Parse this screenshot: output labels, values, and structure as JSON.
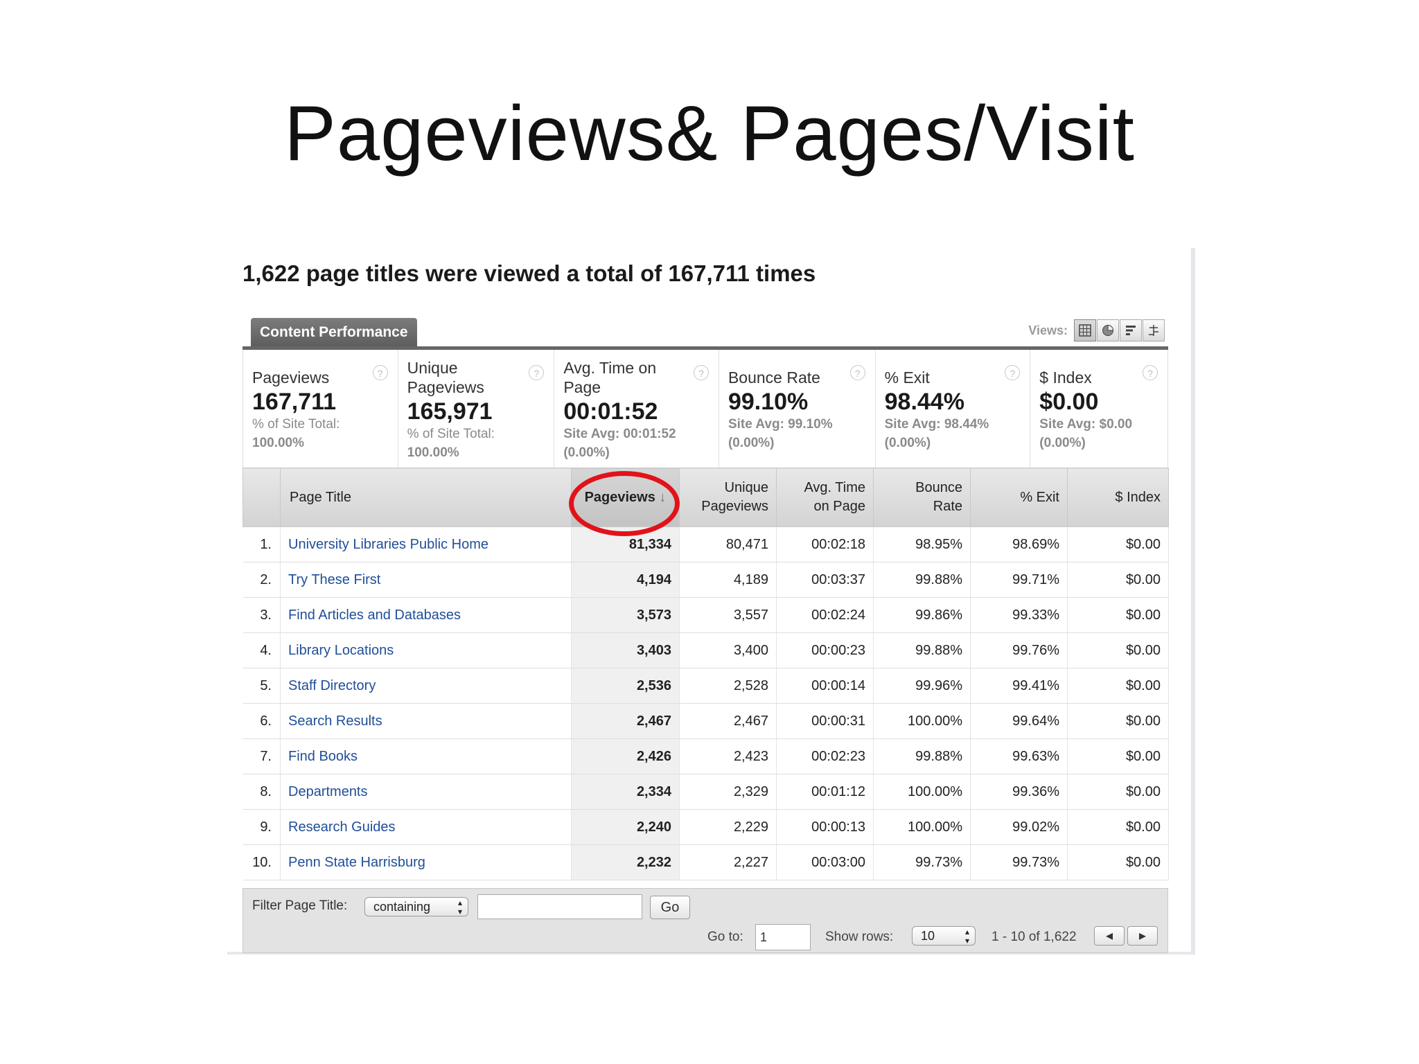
{
  "slide": {
    "title": "Pageviews& Pages/Visit"
  },
  "report": {
    "headline": "1,622 page titles were viewed a total of 167,711 times",
    "tab_label": "Content Performance",
    "views_label": "Views:",
    "view_icons": [
      "table-view-icon",
      "pie-view-icon",
      "bar-view-icon",
      "pivot-view-icon"
    ]
  },
  "metrics": [
    {
      "label_lines": [
        "Pageviews"
      ],
      "value": "167,711",
      "sub_lines": [
        "% of Site Total:",
        "100.00%"
      ]
    },
    {
      "label_lines": [
        "Unique",
        "Pageviews"
      ],
      "value": "165,971",
      "sub_lines": [
        "% of Site Total:",
        "100.00%"
      ]
    },
    {
      "label_lines": [
        "Avg. Time on",
        "Page"
      ],
      "value": "00:01:52",
      "sub_lines": [
        "Site Avg: 00:01:52",
        "(0.00%)"
      ]
    },
    {
      "label_lines": [
        "Bounce Rate"
      ],
      "value": "99.10%",
      "sub_lines": [
        "Site Avg: 99.10%",
        "(0.00%)"
      ]
    },
    {
      "label_lines": [
        "% Exit"
      ],
      "value": "98.44%",
      "sub_lines": [
        "Site Avg: 98.44%",
        "(0.00%)"
      ]
    },
    {
      "label_lines": [
        "$ Index"
      ],
      "value": "$0.00",
      "sub_lines": [
        "Site Avg: $0.00",
        "(0.00%)"
      ]
    }
  ],
  "help_glyph": "?",
  "table": {
    "columns": [
      "",
      "Page Title",
      "Pageviews",
      "Unique\nPageviews",
      "Avg. Time\non Page",
      "Bounce\nRate",
      "% Exit",
      "$ Index"
    ],
    "sort_arrow": "↓",
    "rows": [
      [
        "1.",
        "University Libraries Public Home",
        "81,334",
        "80,471",
        "00:02:18",
        "98.95%",
        "98.69%",
        "$0.00"
      ],
      [
        "2.",
        "Try These First",
        "4,194",
        "4,189",
        "00:03:37",
        "99.88%",
        "99.71%",
        "$0.00"
      ],
      [
        "3.",
        "Find Articles and Databases",
        "3,573",
        "3,557",
        "00:02:24",
        "99.86%",
        "99.33%",
        "$0.00"
      ],
      [
        "4.",
        "Library Locations",
        "3,403",
        "3,400",
        "00:00:23",
        "99.88%",
        "99.76%",
        "$0.00"
      ],
      [
        "5.",
        "Staff Directory",
        "2,536",
        "2,528",
        "00:00:14",
        "99.96%",
        "99.41%",
        "$0.00"
      ],
      [
        "6.",
        "Search Results",
        "2,467",
        "2,467",
        "00:00:31",
        "100.00%",
        "99.64%",
        "$0.00"
      ],
      [
        "7.",
        "Find Books",
        "2,426",
        "2,423",
        "00:02:23",
        "99.88%",
        "99.63%",
        "$0.00"
      ],
      [
        "8.",
        "Departments",
        "2,334",
        "2,329",
        "00:01:12",
        "100.00%",
        "99.36%",
        "$0.00"
      ],
      [
        "9.",
        "Research Guides",
        "2,240",
        "2,229",
        "00:00:13",
        "100.00%",
        "99.02%",
        "$0.00"
      ],
      [
        "10.",
        "Penn State Harrisburg",
        "2,232",
        "2,227",
        "00:03:00",
        "99.73%",
        "99.73%",
        "$0.00"
      ]
    ]
  },
  "footer": {
    "filter_label": "Filter Page Title:",
    "filter_mode": "containing",
    "filter_value": "",
    "go_label": "Go",
    "goto_label": "Go to:",
    "goto_value": "1",
    "show_rows_label": "Show rows:",
    "show_rows_value": "10",
    "range_text": "1 - 10 of 1,622",
    "prev_glyph": "◂",
    "next_glyph": "▸",
    "select_arrows": "▴▾"
  },
  "colors": {
    "highlight_ring": "#e2121a",
    "link": "#1f4e99",
    "tab": "#666666"
  }
}
